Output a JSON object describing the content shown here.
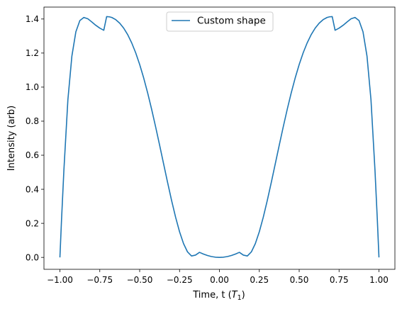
{
  "chart_data": {
    "type": "line",
    "xlabel_prefix": "Time, t (",
    "xlabel_var": "T",
    "xlabel_sub": "1",
    "xlabel_suffix": ")",
    "ylabel": "Intensity (arb)",
    "xlim": [
      -1.1,
      1.1
    ],
    "ylim": [
      -0.07,
      1.47
    ],
    "x_ticks": [
      -1.0,
      -0.75,
      -0.5,
      -0.25,
      0.0,
      0.25,
      0.5,
      0.75,
      1.0
    ],
    "x_tick_labels": [
      "−1.00",
      "−0.75",
      "−0.50",
      "−0.25",
      "0.00",
      "0.25",
      "0.50",
      "0.75",
      "1.00"
    ],
    "y_ticks": [
      0.0,
      0.2,
      0.4,
      0.6,
      0.8,
      1.0,
      1.2,
      1.4
    ],
    "y_tick_labels": [
      "0.0",
      "0.2",
      "0.4",
      "0.6",
      "0.8",
      "1.0",
      "1.2",
      "1.4"
    ],
    "grid": false,
    "legend_position": "top-center",
    "series": [
      {
        "name": "Custom shape",
        "color": "#1f77b4",
        "x": [
          -1.0,
          -0.99,
          -0.975,
          -0.95,
          -0.925,
          -0.9,
          -0.875,
          -0.85,
          -0.825,
          -0.8,
          -0.775,
          -0.75,
          -0.725,
          -0.7071,
          -0.69,
          -0.675,
          -0.65,
          -0.625,
          -0.6,
          -0.575,
          -0.55,
          -0.525,
          -0.5,
          -0.475,
          -0.45,
          -0.425,
          -0.4,
          -0.375,
          -0.35,
          -0.325,
          -0.3,
          -0.275,
          -0.25,
          -0.225,
          -0.2,
          -0.175,
          -0.15,
          -0.125,
          -0.1,
          -0.075,
          -0.05,
          -0.025,
          0.0,
          0.025,
          0.05,
          0.075,
          0.1,
          0.125,
          0.15,
          0.175,
          0.2,
          0.225,
          0.25,
          0.275,
          0.3,
          0.325,
          0.35,
          0.375,
          0.4,
          0.425,
          0.45,
          0.475,
          0.5,
          0.525,
          0.55,
          0.575,
          0.6,
          0.625,
          0.65,
          0.675,
          0.69,
          0.7071,
          0.725,
          0.75,
          0.775,
          0.8,
          0.825,
          0.85,
          0.875,
          0.9,
          0.925,
          0.95,
          0.975,
          0.99,
          1.0
        ],
        "y": [
          0.0,
          0.2176,
          0.513,
          0.9256,
          1.182,
          1.3249,
          1.391,
          1.4092,
          1.4013,
          1.3827,
          1.363,
          1.3464,
          1.3339,
          1.4139,
          1.4128,
          1.4091,
          1.3962,
          1.3754,
          1.3462,
          1.3079,
          1.2598,
          1.2015,
          1.1329,
          1.0542,
          0.966,
          0.8696,
          0.7666,
          0.659,
          0.5493,
          0.44,
          0.3345,
          0.2367,
          0.1506,
          0.0808,
          0.032,
          0.0084,
          0.0136,
          0.0297,
          0.0196,
          0.0113,
          0.005,
          0.0012,
          0.0,
          0.0012,
          0.005,
          0.0113,
          0.0196,
          0.0297,
          0.0136,
          0.0084,
          0.032,
          0.0808,
          0.1506,
          0.2367,
          0.3345,
          0.44,
          0.5493,
          0.659,
          0.7666,
          0.8696,
          0.966,
          1.0542,
          1.1329,
          1.2015,
          1.2598,
          1.3079,
          1.3462,
          1.3754,
          1.3962,
          1.4091,
          1.4128,
          1.4139,
          1.3339,
          1.3464,
          1.363,
          1.3827,
          1.4013,
          1.4092,
          1.391,
          1.3249,
          1.182,
          0.9256,
          0.513,
          0.2176,
          0.0
        ]
      }
    ]
  }
}
